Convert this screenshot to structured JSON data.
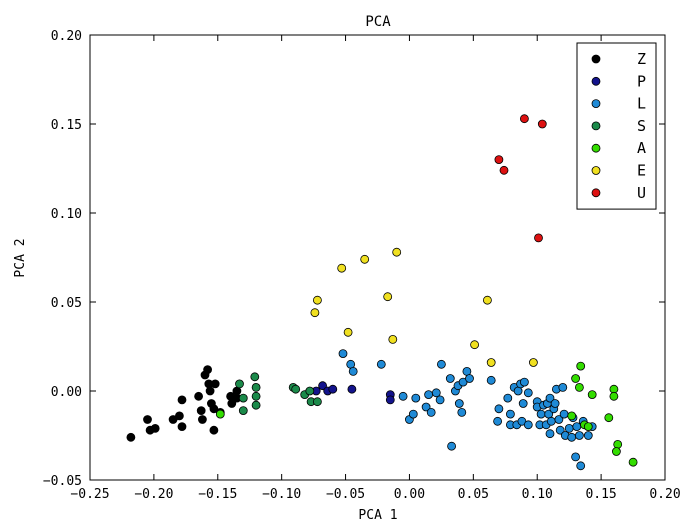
{
  "chart_data": {
    "type": "scatter",
    "title": "PCA",
    "xlabel": "PCA 1",
    "ylabel": "PCA 2",
    "xlim": [
      -0.25,
      0.2
    ],
    "ylim": [
      -0.05,
      0.2
    ],
    "xticks": [
      -0.25,
      -0.2,
      -0.15,
      -0.1,
      -0.05,
      0.0,
      0.05,
      0.1,
      0.15,
      0.2
    ],
    "xtick_labels": [
      "−0.25",
      "−0.20",
      "−0.15",
      "−0.10",
      "−0.05",
      "0.00",
      "0.05",
      "0.10",
      "0.15",
      "0.20"
    ],
    "yticks": [
      -0.05,
      0.0,
      0.05,
      0.1,
      0.15,
      0.2
    ],
    "ytick_labels": [
      "−0.05",
      "0.00",
      "0.05",
      "0.10",
      "0.15",
      "0.20"
    ],
    "grid": false,
    "legend_position": "top-right",
    "series": [
      {
        "name": "Z",
        "color": "#000000",
        "points": [
          [
            -0.218,
            -0.026
          ],
          [
            -0.205,
            -0.016
          ],
          [
            -0.203,
            -0.022
          ],
          [
            -0.199,
            -0.021
          ],
          [
            -0.185,
            -0.016
          ],
          [
            -0.18,
            -0.014
          ],
          [
            -0.178,
            -0.005
          ],
          [
            -0.178,
            -0.02
          ],
          [
            -0.165,
            -0.003
          ],
          [
            -0.163,
            -0.011
          ],
          [
            -0.162,
            -0.016
          ],
          [
            -0.16,
            0.009
          ],
          [
            -0.158,
            0.012
          ],
          [
            -0.157,
            0.004
          ],
          [
            -0.156,
            0.0
          ],
          [
            -0.155,
            -0.007
          ],
          [
            -0.153,
            -0.01
          ],
          [
            -0.152,
            0.004
          ],
          [
            -0.153,
            -0.022
          ],
          [
            -0.148,
            -0.012
          ],
          [
            -0.14,
            -0.003
          ],
          [
            -0.139,
            -0.007
          ],
          [
            -0.135,
            0.0
          ],
          [
            -0.135,
            -0.004
          ]
        ]
      },
      {
        "name": "P",
        "color": "#13138c",
        "points": [
          [
            -0.073,
            0.0
          ],
          [
            -0.068,
            0.003
          ],
          [
            -0.064,
            0.0
          ],
          [
            -0.06,
            0.001
          ],
          [
            -0.045,
            0.001
          ],
          [
            -0.015,
            -0.002
          ],
          [
            -0.015,
            -0.005
          ]
        ]
      },
      {
        "name": "L",
        "color": "#1f8ad6",
        "points": [
          [
            -0.052,
            0.021
          ],
          [
            -0.046,
            0.015
          ],
          [
            -0.044,
            0.011
          ],
          [
            -0.022,
            0.015
          ],
          [
            -0.005,
            -0.003
          ],
          [
            0.0,
            -0.016
          ],
          [
            0.003,
            -0.013
          ],
          [
            0.005,
            -0.004
          ],
          [
            0.013,
            -0.009
          ],
          [
            0.015,
            -0.002
          ],
          [
            0.017,
            -0.012
          ],
          [
            0.021,
            -0.001
          ],
          [
            0.024,
            -0.005
          ],
          [
            0.025,
            0.015
          ],
          [
            0.032,
            0.007
          ],
          [
            0.033,
            -0.031
          ],
          [
            0.036,
            0.0
          ],
          [
            0.038,
            0.003
          ],
          [
            0.039,
            -0.007
          ],
          [
            0.041,
            -0.012
          ],
          [
            0.042,
            0.005
          ],
          [
            0.045,
            0.011
          ],
          [
            0.047,
            0.007
          ],
          [
            0.064,
            0.006
          ],
          [
            0.069,
            -0.017
          ],
          [
            0.07,
            -0.01
          ],
          [
            0.077,
            -0.004
          ],
          [
            0.079,
            -0.013
          ],
          [
            0.079,
            -0.019
          ],
          [
            0.082,
            0.002
          ],
          [
            0.084,
            -0.019
          ],
          [
            0.085,
            0.0
          ],
          [
            0.087,
            0.004
          ],
          [
            0.088,
            -0.017
          ],
          [
            0.089,
            -0.007
          ],
          [
            0.09,
            0.005
          ],
          [
            0.093,
            -0.001
          ],
          [
            0.093,
            -0.019
          ],
          [
            0.1,
            -0.006
          ],
          [
            0.1,
            -0.009
          ],
          [
            0.102,
            -0.019
          ],
          [
            0.103,
            -0.013
          ],
          [
            0.105,
            -0.008
          ],
          [
            0.107,
            -0.019
          ],
          [
            0.108,
            -0.007
          ],
          [
            0.109,
            -0.013
          ],
          [
            0.11,
            -0.004
          ],
          [
            0.11,
            -0.024
          ],
          [
            0.111,
            -0.017
          ],
          [
            0.113,
            -0.01
          ],
          [
            0.114,
            -0.007
          ],
          [
            0.115,
            0.001
          ],
          [
            0.117,
            -0.016
          ],
          [
            0.118,
            -0.022
          ],
          [
            0.12,
            0.002
          ],
          [
            0.121,
            -0.013
          ],
          [
            0.122,
            -0.025
          ],
          [
            0.125,
            -0.021
          ],
          [
            0.127,
            -0.026
          ],
          [
            0.128,
            -0.015
          ],
          [
            0.13,
            -0.037
          ],
          [
            0.131,
            -0.02
          ],
          [
            0.133,
            -0.025
          ],
          [
            0.134,
            -0.042
          ],
          [
            0.136,
            -0.017
          ],
          [
            0.14,
            -0.025
          ],
          [
            0.143,
            -0.02
          ]
        ]
      },
      {
        "name": "S",
        "color": "#1b8a4a",
        "points": [
          [
            -0.133,
            0.004
          ],
          [
            -0.13,
            -0.004
          ],
          [
            -0.13,
            -0.011
          ],
          [
            -0.121,
            0.008
          ],
          [
            -0.12,
            0.002
          ],
          [
            -0.12,
            -0.003
          ],
          [
            -0.12,
            -0.008
          ],
          [
            -0.091,
            0.002
          ],
          [
            -0.089,
            0.001
          ],
          [
            -0.082,
            -0.002
          ],
          [
            -0.077,
            -0.006
          ],
          [
            -0.078,
            0.0
          ],
          [
            -0.072,
            -0.006
          ]
        ]
      },
      {
        "name": "A",
        "color": "#33dd00",
        "points": [
          [
            -0.148,
            -0.013
          ],
          [
            0.127,
            -0.014
          ],
          [
            0.13,
            0.007
          ],
          [
            0.133,
            0.002
          ],
          [
            0.134,
            0.014
          ],
          [
            0.137,
            -0.019
          ],
          [
            0.14,
            -0.02
          ],
          [
            0.143,
            -0.002
          ],
          [
            0.156,
            -0.015
          ],
          [
            0.16,
            0.001
          ],
          [
            0.16,
            -0.003
          ],
          [
            0.163,
            -0.03
          ],
          [
            0.162,
            -0.034
          ],
          [
            0.175,
            -0.04
          ]
        ]
      },
      {
        "name": "E",
        "color": "#f0e020",
        "points": [
          [
            -0.072,
            0.051
          ],
          [
            -0.074,
            0.044
          ],
          [
            -0.053,
            0.069
          ],
          [
            -0.048,
            0.033
          ],
          [
            -0.035,
            0.074
          ],
          [
            -0.017,
            0.053
          ],
          [
            -0.013,
            0.029
          ],
          [
            -0.01,
            0.078
          ],
          [
            0.051,
            0.026
          ],
          [
            0.061,
            0.051
          ],
          [
            0.064,
            0.016
          ],
          [
            0.097,
            0.016
          ]
        ]
      },
      {
        "name": "U",
        "color": "#dd1111",
        "points": [
          [
            0.07,
            0.13
          ],
          [
            0.074,
            0.124
          ],
          [
            0.09,
            0.153
          ],
          [
            0.101,
            0.086
          ],
          [
            0.104,
            0.15
          ]
        ]
      }
    ]
  }
}
